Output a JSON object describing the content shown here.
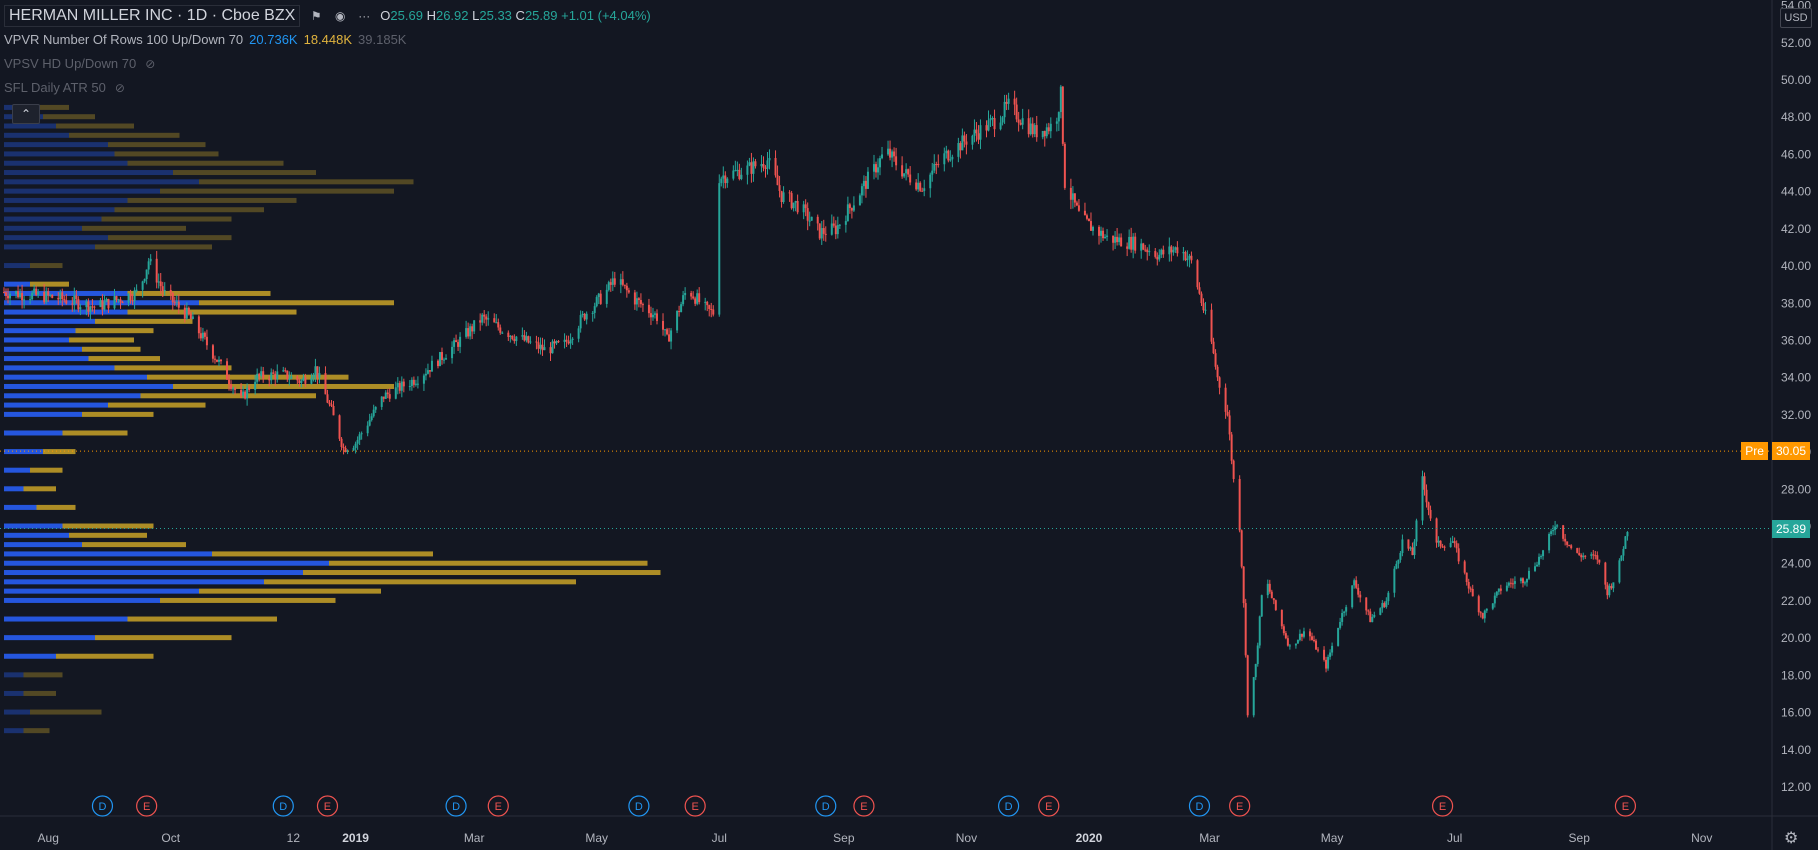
{
  "header": {
    "symbol_title": "HERMAN MILLER INC · 1D · Cboe BZX",
    "ohlc": {
      "o_label": "O",
      "o_value": "25.69",
      "h_label": "H",
      "h_value": "26.92",
      "l_label": "L",
      "l_value": "25.33",
      "c_label": "C",
      "c_value": "25.89",
      "change": "+1.01 (+4.04%)"
    }
  },
  "indicators": [
    {
      "name": "VPVR Number Of Rows 100 Up/Down 70",
      "v1": "20.736K",
      "v2": "18.448K",
      "v3": "39.185K",
      "dim": false
    },
    {
      "name": "VPSV HD Up/Down 70",
      "dim": true
    },
    {
      "name": "SFL Daily ATR 50",
      "dim": true
    }
  ],
  "collapse_icon": "chevron-up-icon",
  "currency": "USD",
  "colors": {
    "up": "#26a69a",
    "down": "#ef5350",
    "vol_up": "#2962ff",
    "vol_down": "#c9a227",
    "pre": "#ff9800",
    "last": "#26a69a"
  },
  "chart_data": {
    "type": "candlestick",
    "title": "HERMAN MILLER INC · 1D · Cboe BZX",
    "y_axis": {
      "min": 11.3,
      "max": 54.3,
      "ticks": [
        "12.00",
        "14.00",
        "16.00",
        "18.00",
        "20.00",
        "22.00",
        "24.00",
        "26.00",
        "28.00",
        "30.00",
        "32.00",
        "34.00",
        "36.00",
        "38.00",
        "40.00",
        "42.00",
        "44.00",
        "46.00",
        "48.00",
        "50.00",
        "52.00",
        "54.00"
      ]
    },
    "x_axis": {
      "start": "2018-07-10",
      "end": "2020-11-25",
      "ticks": [
        {
          "label": "Aug",
          "date": "2018-08-01",
          "bold": false
        },
        {
          "label": "Oct",
          "date": "2018-10-01",
          "bold": false
        },
        {
          "label": "12",
          "date": "2018-12-01",
          "bold": false
        },
        {
          "label": "2019",
          "date": "2019-01-01",
          "bold": true
        },
        {
          "label": "Mar",
          "date": "2019-03-01",
          "bold": false
        },
        {
          "label": "May",
          "date": "2019-05-01",
          "bold": false
        },
        {
          "label": "Jul",
          "date": "2019-07-01",
          "bold": false
        },
        {
          "label": "Sep",
          "date": "2019-09-01",
          "bold": false
        },
        {
          "label": "Nov",
          "date": "2019-11-01",
          "bold": false
        },
        {
          "label": "2020",
          "date": "2020-01-01",
          "bold": true
        },
        {
          "label": "Mar",
          "date": "2020-03-01",
          "bold": false
        },
        {
          "label": "May",
          "date": "2020-05-01",
          "bold": false
        },
        {
          "label": "Jul",
          "date": "2020-07-01",
          "bold": false
        },
        {
          "label": "Sep",
          "date": "2020-09-01",
          "bold": false
        },
        {
          "label": "Nov",
          "date": "2020-11-01",
          "bold": false
        }
      ]
    },
    "price_path": [
      [
        "2018-07-10",
        38.6
      ],
      [
        "2018-08-05",
        38.3
      ],
      [
        "2018-08-25",
        37.8
      ],
      [
        "2018-09-15",
        38.6
      ],
      [
        "2018-09-20",
        40.3
      ],
      [
        "2018-09-28",
        38.5
      ],
      [
        "2018-10-10",
        37.3
      ],
      [
        "2018-10-25",
        34.8
      ],
      [
        "2018-11-05",
        32.8
      ],
      [
        "2018-11-12",
        34.0
      ],
      [
        "2018-11-25",
        34.2
      ],
      [
        "2018-12-05",
        33.8
      ],
      [
        "2018-12-12",
        34.5
      ],
      [
        "2018-12-20",
        32.2
      ],
      [
        "2018-12-26",
        30.2
      ],
      [
        "2019-01-01",
        30.5
      ],
      [
        "2019-01-15",
        33.0
      ],
      [
        "2019-02-01",
        34.0
      ],
      [
        "2019-02-20",
        35.8
      ],
      [
        "2019-03-05",
        37.2
      ],
      [
        "2019-03-20",
        36.3
      ],
      [
        "2019-04-05",
        35.5
      ],
      [
        "2019-04-15",
        35.8
      ],
      [
        "2019-04-25",
        37.4
      ],
      [
        "2019-05-05",
        38.5
      ],
      [
        "2019-05-10",
        39.3
      ],
      [
        "2019-05-20",
        38.2
      ],
      [
        "2019-06-01",
        37.2
      ],
      [
        "2019-06-05",
        36.0
      ],
      [
        "2019-06-15",
        38.8
      ],
      [
        "2019-06-25",
        37.6
      ],
      [
        "2019-06-28",
        37.5
      ],
      [
        "2019-07-01",
        44.8
      ],
      [
        "2019-07-15",
        45.2
      ],
      [
        "2019-07-25",
        45.7
      ],
      [
        "2019-08-01",
        43.8
      ],
      [
        "2019-08-10",
        43.2
      ],
      [
        "2019-08-20",
        41.8
      ],
      [
        "2019-08-28",
        42.0
      ],
      [
        "2019-09-08",
        43.8
      ],
      [
        "2019-09-15",
        45.0
      ],
      [
        "2019-09-22",
        46.2
      ],
      [
        "2019-10-01",
        45.0
      ],
      [
        "2019-10-10",
        44.3
      ],
      [
        "2019-10-20",
        45.8
      ],
      [
        "2019-11-01",
        46.8
      ],
      [
        "2019-11-15",
        47.8
      ],
      [
        "2019-11-22",
        48.6
      ],
      [
        "2019-12-05",
        47.2
      ],
      [
        "2019-12-15",
        47.6
      ],
      [
        "2019-12-18",
        49.2
      ],
      [
        "2019-12-20",
        44.5
      ],
      [
        "2019-12-28",
        42.5
      ],
      [
        "2020-01-10",
        41.5
      ],
      [
        "2020-01-25",
        41.2
      ],
      [
        "2020-02-05",
        40.6
      ],
      [
        "2020-02-15",
        41.0
      ],
      [
        "2020-02-21",
        40.2
      ],
      [
        "2020-02-25",
        38.5
      ],
      [
        "2020-03-01",
        36.5
      ],
      [
        "2020-03-05",
        34.0
      ],
      [
        "2020-03-10",
        32.0
      ],
      [
        "2020-03-13",
        28.5
      ],
      [
        "2020-03-16",
        26.0
      ],
      [
        "2020-03-18",
        22.0
      ],
      [
        "2020-03-20",
        16.0
      ],
      [
        "2020-03-24",
        18.5
      ],
      [
        "2020-03-28",
        23.5
      ],
      [
        "2020-04-03",
        21.5
      ],
      [
        "2020-04-10",
        19.5
      ],
      [
        "2020-04-18",
        20.5
      ],
      [
        "2020-04-28",
        18.5
      ],
      [
        "2020-05-05",
        21.0
      ],
      [
        "2020-05-12",
        23.0
      ],
      [
        "2020-05-20",
        21.0
      ],
      [
        "2020-05-28",
        22.0
      ],
      [
        "2020-06-05",
        25.2
      ],
      [
        "2020-06-10",
        24.5
      ],
      [
        "2020-06-15",
        28.5
      ],
      [
        "2020-06-22",
        25.0
      ],
      [
        "2020-06-30",
        25.2
      ],
      [
        "2020-07-10",
        22.2
      ],
      [
        "2020-07-15",
        21.2
      ],
      [
        "2020-07-25",
        22.8
      ],
      [
        "2020-08-05",
        23.2
      ],
      [
        "2020-08-15",
        24.8
      ],
      [
        "2020-08-20",
        26.2
      ],
      [
        "2020-08-30",
        24.5
      ],
      [
        "2020-09-10",
        24.3
      ],
      [
        "2020-09-15",
        22.5
      ],
      [
        "2020-09-20",
        23.5
      ],
      [
        "2020-09-25",
        25.89
      ]
    ],
    "events": [
      {
        "type": "D",
        "date": "2018-08-28"
      },
      {
        "type": "E",
        "date": "2018-09-19"
      },
      {
        "type": "D",
        "date": "2018-11-26"
      },
      {
        "type": "E",
        "date": "2018-12-18"
      },
      {
        "type": "D",
        "date": "2019-02-20"
      },
      {
        "type": "E",
        "date": "2019-03-13"
      },
      {
        "type": "D",
        "date": "2019-05-22"
      },
      {
        "type": "E",
        "date": "2019-06-19"
      },
      {
        "type": "D",
        "date": "2019-08-23"
      },
      {
        "type": "E",
        "date": "2019-09-11"
      },
      {
        "type": "D",
        "date": "2019-11-22"
      },
      {
        "type": "E",
        "date": "2019-12-12"
      },
      {
        "type": "D",
        "date": "2020-02-25"
      },
      {
        "type": "E",
        "date": "2020-03-16"
      },
      {
        "type": "E",
        "date": "2020-06-25"
      },
      {
        "type": "E",
        "date": "2020-09-24"
      }
    ],
    "volume_profile": [
      {
        "price": 15.0,
        "up": 15,
        "down": 20
      },
      {
        "price": 16.0,
        "up": 20,
        "down": 55
      },
      {
        "price": 17.0,
        "up": 15,
        "down": 25
      },
      {
        "price": 18.0,
        "up": 15,
        "down": 30
      },
      {
        "price": 19.0,
        "up": 40,
        "down": 75
      },
      {
        "price": 20.0,
        "up": 70,
        "down": 105
      },
      {
        "price": 21.0,
        "up": 95,
        "down": 115
      },
      {
        "price": 22.0,
        "up": 120,
        "down": 135
      },
      {
        "price": 22.5,
        "up": 150,
        "down": 140
      },
      {
        "price": 23.0,
        "up": 200,
        "down": 240
      },
      {
        "price": 23.5,
        "up": 230,
        "down": 275
      },
      {
        "price": 24.0,
        "up": 250,
        "down": 245
      },
      {
        "price": 24.5,
        "up": 160,
        "down": 170
      },
      {
        "price": 25.0,
        "up": 60,
        "down": 80
      },
      {
        "price": 25.5,
        "up": 50,
        "down": 60
      },
      {
        "price": 26.0,
        "up": 45,
        "down": 70
      },
      {
        "price": 27.0,
        "up": 25,
        "down": 30
      },
      {
        "price": 28.0,
        "up": 15,
        "down": 25
      },
      {
        "price": 29.0,
        "up": 20,
        "down": 25
      },
      {
        "price": 30.0,
        "up": 30,
        "down": 25
      },
      {
        "price": 31.0,
        "up": 45,
        "down": 50
      },
      {
        "price": 32.0,
        "up": 60,
        "down": 55
      },
      {
        "price": 32.5,
        "up": 80,
        "down": 75
      },
      {
        "price": 33.0,
        "up": 105,
        "down": 135
      },
      {
        "price": 33.5,
        "up": 130,
        "down": 170
      },
      {
        "price": 34.0,
        "up": 110,
        "down": 155
      },
      {
        "price": 34.5,
        "up": 85,
        "down": 90
      },
      {
        "price": 35.0,
        "up": 65,
        "down": 55
      },
      {
        "price": 35.5,
        "up": 60,
        "down": 45
      },
      {
        "price": 36.0,
        "up": 50,
        "down": 50
      },
      {
        "price": 36.5,
        "up": 55,
        "down": 60
      },
      {
        "price": 37.0,
        "up": 70,
        "down": 75
      },
      {
        "price": 37.5,
        "up": 95,
        "down": 130
      },
      {
        "price": 38.0,
        "up": 150,
        "down": 150
      },
      {
        "price": 38.5,
        "up": 95,
        "down": 110
      },
      {
        "price": 39.0,
        "up": 20,
        "down": 30
      },
      {
        "price": 40.0,
        "up": 20,
        "down": 25
      },
      {
        "price": 41.0,
        "up": 70,
        "down": 90
      },
      {
        "price": 41.5,
        "up": 80,
        "down": 95
      },
      {
        "price": 42.0,
        "up": 60,
        "down": 80
      },
      {
        "price": 42.5,
        "up": 75,
        "down": 100
      },
      {
        "price": 43.0,
        "up": 85,
        "down": 115
      },
      {
        "price": 43.5,
        "up": 95,
        "down": 130
      },
      {
        "price": 44.0,
        "up": 120,
        "down": 180
      },
      {
        "price": 44.5,
        "up": 150,
        "down": 165
      },
      {
        "price": 45.0,
        "up": 130,
        "down": 110
      },
      {
        "price": 45.5,
        "up": 95,
        "down": 120
      },
      {
        "price": 46.0,
        "up": 85,
        "down": 80
      },
      {
        "price": 46.5,
        "up": 80,
        "down": 75
      },
      {
        "price": 47.0,
        "up": 50,
        "down": 85
      },
      {
        "price": 47.5,
        "up": 40,
        "down": 60
      },
      {
        "price": 48.0,
        "up": 30,
        "down": 40
      },
      {
        "price": 48.5,
        "up": 20,
        "down": 30
      }
    ],
    "price_lines": [
      {
        "label": "Pre",
        "value": 30.05,
        "value_text": "30.05",
        "color": "#ff9800",
        "style": "dotted"
      },
      {
        "label": "",
        "value": 25.89,
        "value_text": "25.89",
        "color": "#26a69a",
        "style": "dotted"
      }
    ]
  }
}
